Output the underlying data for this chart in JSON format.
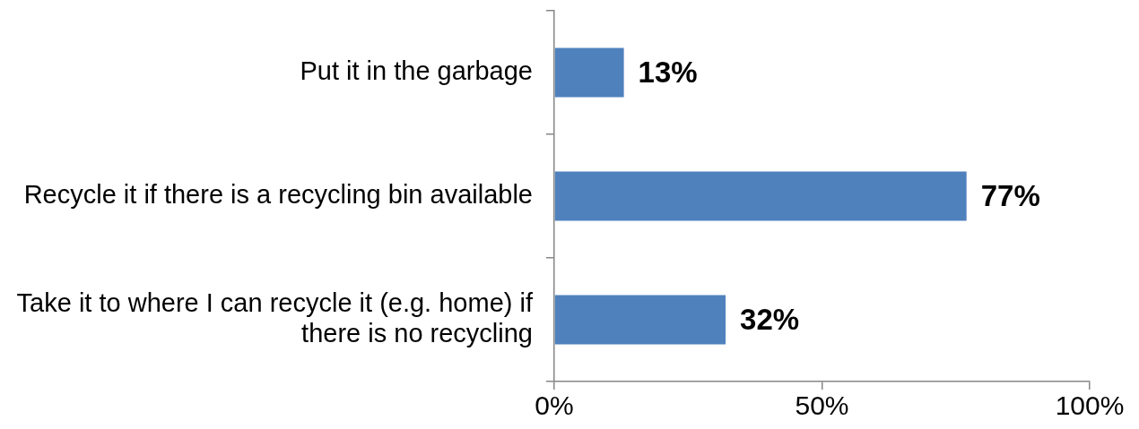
{
  "chart_data": {
    "type": "bar",
    "orientation": "horizontal",
    "categories": [
      "Put it in the garbage",
      "Recycle it if there is a recycling bin available",
      "Take it to where I can recycle it (e.g. home) if there is no recycling"
    ],
    "values": [
      13,
      77,
      32
    ],
    "color": "#4f81bd",
    "value_labels": [
      "13%",
      "77%",
      "32%"
    ],
    "xlim": [
      0,
      100
    ],
    "xticks": [
      {
        "value": 0,
        "label": "0%"
      },
      {
        "value": 50,
        "label": "50%"
      },
      {
        "value": 100,
        "label": "100%"
      }
    ],
    "grid": false
  }
}
